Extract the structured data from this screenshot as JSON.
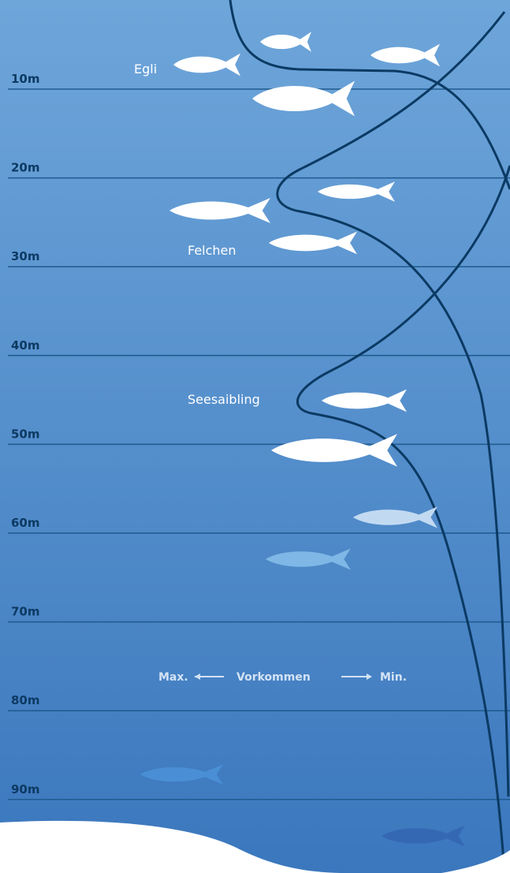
{
  "depth_labels": [
    "10m",
    "20m",
    "30m",
    "40m",
    "50m",
    "60m",
    "70m",
    "80m",
    "90m"
  ],
  "species": [
    "Egli",
    "Felchen",
    "Seesaibling"
  ],
  "legend": {
    "max": "Max.",
    "title": "Vorkommen",
    "min": "Min."
  }
}
